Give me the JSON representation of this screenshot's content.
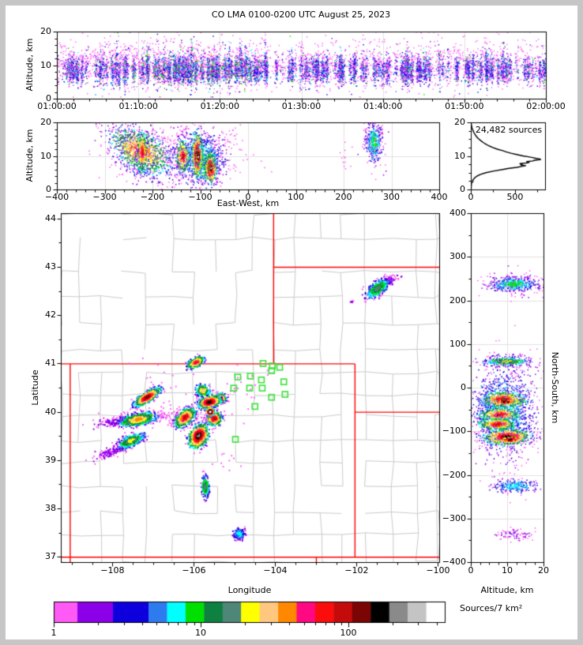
{
  "title": "CO LMA 0100-0200 UTC August 25, 2023",
  "histogram_annotation": "24,482 sources",
  "colorbar": {
    "label": "Sources/7 km²",
    "tick_values": [
      1,
      10,
      100
    ],
    "tick_labels": [
      "1",
      "10",
      "100"
    ],
    "minor_ticks": [
      2,
      3,
      4,
      5,
      6,
      7,
      8,
      9,
      20,
      30,
      40,
      50,
      60,
      70,
      80,
      90,
      200,
      300,
      400
    ],
    "scale": "log",
    "range": [
      1,
      460
    ],
    "colors": [
      "#ff5af5",
      "#8b00e8",
      "#0d00dd",
      "#2e7bf0",
      "#00ffff",
      "#00e000",
      "#0e8040",
      "#4e8677",
      "#ffff00",
      "#ffc87e",
      "#ff8800",
      "#ff0882",
      "#fb0d0d",
      "#c40b0b",
      "#7b0404",
      "#000000",
      "#8a8a8a",
      "#c4c4c4",
      "#ffffff"
    ]
  },
  "style_colors": {
    "state_border": "#ff0000",
    "county_line": "#c9c9c9",
    "gridline": "#e0e0e0",
    "station": "#43e243",
    "frame": "#000000"
  },
  "chart_data": {
    "type": "scatter",
    "figure": "VHF lightning source density, five linked panels with log colorbar of sources per 7 km^2",
    "cluster_format": "[center_x, center_y, sigma_x, sigma_y, shear_dy_per_dx, n_points, peak_color_tier(0-18 into colorbar.colors)]",
    "panels": {
      "time_height": {
        "ylabel": "Altitude, km",
        "ylim": [
          0,
          20
        ],
        "yticks": [
          {
            "v": 0,
            "t": "0"
          },
          {
            "v": 10,
            "t": "10"
          },
          {
            "v": 20,
            "t": "20"
          }
        ],
        "xtick_labels": [
          "01:00:00",
          "01:10:00",
          "01:20:00",
          "01:30:00",
          "01:40:00",
          "01:50:00",
          "02:00:00"
        ],
        "scatter_gen": {
          "columns": 252,
          "pts_per_column": [
            8,
            58
          ],
          "halo_points": 2400,
          "band_alt": 8.4,
          "band_sd": 2.0,
          "halo_alt": 10.3,
          "halo_sd": 3.6,
          "hot_start": 0.15,
          "hot_end": 0.4,
          "quiet_start": 0.42,
          "quiet_end": 0.52
        }
      },
      "east_west": {
        "xlabel": "East-West, km",
        "ylabel": "Altitude, km",
        "xlim": [
          -400,
          400
        ],
        "ylim": [
          0,
          20
        ],
        "xticks": [
          {
            "v": -400,
            "t": "−400"
          },
          {
            "v": -300,
            "t": "−300"
          },
          {
            "v": -200,
            "t": "−200"
          },
          {
            "v": -100,
            "t": "−100"
          },
          {
            "v": 0,
            "t": "0"
          },
          {
            "v": 100,
            "t": "100"
          },
          {
            "v": 200,
            "t": "200"
          },
          {
            "v": 300,
            "t": "300"
          },
          {
            "v": 400,
            "t": "400"
          }
        ],
        "yticks": [
          {
            "v": 0,
            "t": "0"
          },
          {
            "v": 10,
            "t": "10"
          },
          {
            "v": 20,
            "t": "20"
          }
        ],
        "clusters": [
          [
            -225,
            11.5,
            30,
            2.9,
            -0.05,
            850,
            12
          ],
          [
            -221,
            11,
            5,
            3.0,
            0,
            260,
            13
          ],
          [
            -228,
            11,
            36,
            4.6,
            -0.07,
            450,
            2
          ],
          [
            -105,
            9.5,
            27,
            3.8,
            0,
            850,
            4
          ],
          [
            -136,
            9.8,
            7,
            2.3,
            0,
            260,
            13
          ],
          [
            -106,
            10,
            6,
            3.3,
            0,
            380,
            16
          ],
          [
            -104,
            10,
            2.5,
            1.3,
            0,
            70,
            18
          ],
          [
            -78,
            6.3,
            6,
            2.1,
            0,
            320,
            16
          ],
          [
            -77,
            6.2,
            2,
            1.1,
            0,
            60,
            18
          ],
          [
            -90,
            8,
            15,
            3,
            0,
            260,
            7
          ],
          [
            263,
            14,
            8,
            3.1,
            0,
            280,
            5
          ],
          [
            263,
            15,
            12,
            4.2,
            0,
            130,
            1
          ],
          [
            -160,
            11,
            70,
            4,
            -0.02,
            320,
            0
          ],
          [
            -40,
            15,
            25,
            2.6,
            0,
            45,
            0
          ],
          [
            205,
            10,
            6,
            2,
            0,
            12,
            0
          ]
        ]
      },
      "altitude_histogram": {
        "annotation": "24,482 sources",
        "xlim": [
          0,
          840
        ],
        "ylim": [
          0,
          20
        ],
        "xticks": [
          {
            "v": 0,
            "t": "0"
          },
          {
            "v": 500,
            "t": "500"
          }
        ],
        "yticks": [
          {
            "v": 0,
            "t": "0"
          },
          {
            "v": 10,
            "t": "10"
          },
          {
            "v": 20,
            "t": "20"
          }
        ],
        "profile": [
          [
            0,
            3
          ],
          [
            1,
            5
          ],
          [
            2,
            8
          ],
          [
            2.3,
            25
          ],
          [
            2.6,
            18
          ],
          [
            3,
            30
          ],
          [
            3.5,
            45
          ],
          [
            4,
            70
          ],
          [
            4.5,
            110
          ],
          [
            5,
            170
          ],
          [
            5.5,
            260
          ],
          [
            6,
            370
          ],
          [
            6.3,
            430
          ],
          [
            6.6,
            520
          ],
          [
            6.9,
            585
          ],
          [
            7.1,
            620
          ],
          [
            7.3,
            565
          ],
          [
            7.5,
            580
          ],
          [
            7.7,
            555
          ],
          [
            7.9,
            640
          ],
          [
            8.1,
            660
          ],
          [
            8.3,
            630
          ],
          [
            8.5,
            700
          ],
          [
            8.7,
            720
          ],
          [
            8.9,
            790
          ],
          [
            9.1,
            780
          ],
          [
            9.3,
            735
          ],
          [
            9.5,
            700
          ],
          [
            9.8,
            640
          ],
          [
            10,
            590
          ],
          [
            10.4,
            520
          ],
          [
            10.8,
            455
          ],
          [
            11.2,
            400
          ],
          [
            11.6,
            355
          ],
          [
            12,
            300
          ],
          [
            12.5,
            250
          ],
          [
            13,
            205
          ],
          [
            13.5,
            170
          ],
          [
            14,
            140
          ],
          [
            14.5,
            115
          ],
          [
            15,
            92
          ],
          [
            15.5,
            72
          ],
          [
            16,
            58
          ],
          [
            16.5,
            45
          ],
          [
            17,
            34
          ],
          [
            17.5,
            26
          ],
          [
            18,
            18
          ],
          [
            18.5,
            12
          ],
          [
            19,
            8
          ],
          [
            19.5,
            5
          ],
          [
            20,
            3
          ]
        ]
      },
      "plan_view": {
        "xlabel": "Longitude",
        "ylabel": "Latitude",
        "lon_range": [
          -109.27,
          -99.97
        ],
        "lat_range": [
          36.89,
          44.11
        ],
        "xticks": [
          {
            "v": -108,
            "t": "−108"
          },
          {
            "v": -106,
            "t": "−106"
          },
          {
            "v": -104,
            "t": "−104"
          },
          {
            "v": -102,
            "t": "−102"
          },
          {
            "v": -100,
            "t": "−100"
          }
        ],
        "yticks": [
          {
            "v": 37,
            "t": "37"
          },
          {
            "v": 38,
            "t": "38"
          },
          {
            "v": 39,
            "t": "39"
          },
          {
            "v": 40,
            "t": "40"
          },
          {
            "v": 41,
            "t": "41"
          },
          {
            "v": 42,
            "t": "42"
          },
          {
            "v": 43,
            "t": "43"
          },
          {
            "v": 44,
            "t": "44"
          }
        ],
        "state_lines": [
          [
            -109.27,
            41,
            -102.05,
            41
          ],
          [
            -109.27,
            37,
            -99.97,
            37
          ],
          [
            -109.05,
            36.89,
            -109.05,
            41
          ],
          [
            -102.05,
            37,
            -102.05,
            41
          ],
          [
            -104.05,
            41,
            -104.05,
            44.11
          ],
          [
            -104.05,
            43,
            -99.97,
            43
          ],
          [
            -102.05,
            40,
            -99.97,
            40
          ],
          [
            -103.0,
            36.89,
            -103.0,
            37
          ]
        ],
        "stations": [
          [
            -104.3,
            41.0
          ],
          [
            -104.07,
            40.95
          ],
          [
            -103.89,
            40.92
          ],
          [
            -104.09,
            40.85
          ],
          [
            -104.61,
            40.74
          ],
          [
            -104.92,
            40.72
          ],
          [
            -104.34,
            40.66
          ],
          [
            -103.79,
            40.62
          ],
          [
            -105.02,
            40.49
          ],
          [
            -104.63,
            40.49
          ],
          [
            -104.32,
            40.49
          ],
          [
            -103.76,
            40.36
          ],
          [
            -104.09,
            40.3
          ],
          [
            -104.5,
            40.11
          ],
          [
            -104.98,
            39.43
          ]
        ],
        "clusters": [
          [
            -105.95,
            41.02,
            0.1,
            0.05,
            0.3,
            320,
            12
          ],
          [
            -107.15,
            40.3,
            0.15,
            0.055,
            0.45,
            650,
            14
          ],
          [
            -107.38,
            39.84,
            0.22,
            0.06,
            0.15,
            700,
            10
          ],
          [
            -107.85,
            39.8,
            0.28,
            0.045,
            0.1,
            160,
            1
          ],
          [
            -107.55,
            39.4,
            0.16,
            0.06,
            0.3,
            420,
            8
          ],
          [
            -108.05,
            39.16,
            0.2,
            0.05,
            0.3,
            130,
            1
          ],
          [
            -106.22,
            39.88,
            0.12,
            0.08,
            0.4,
            550,
            13
          ],
          [
            -105.78,
            40.44,
            0.09,
            0.06,
            0,
            230,
            9
          ],
          [
            -105.62,
            40.2,
            0.13,
            0.06,
            0.15,
            600,
            15
          ],
          [
            -105.5,
            39.86,
            0.09,
            0.07,
            0,
            380,
            13
          ],
          [
            -105.88,
            39.5,
            0.11,
            0.11,
            0.3,
            800,
            16
          ],
          [
            -105.6,
            40.0,
            0.05,
            0.04,
            0,
            160,
            18
          ],
          [
            -105.33,
            40.28,
            0.06,
            0.05,
            0,
            200,
            12
          ],
          [
            -101.48,
            42.55,
            0.13,
            0.08,
            0.45,
            380,
            7
          ],
          [
            -101.25,
            42.68,
            0.13,
            0.05,
            0.3,
            110,
            1
          ],
          [
            -105.72,
            38.45,
            0.045,
            0.11,
            0,
            210,
            7
          ],
          [
            -104.88,
            37.47,
            0.07,
            0.06,
            0,
            150,
            4
          ],
          [
            -106.5,
            39.95,
            0.5,
            0.1,
            0,
            110,
            0
          ],
          [
            -104.7,
            40.45,
            0.45,
            0.3,
            0,
            25,
            0
          ],
          [
            -106.8,
            40.7,
            0.3,
            0.3,
            0,
            15,
            0
          ],
          [
            -102.1,
            42.28,
            0.05,
            0.02,
            0,
            10,
            1
          ],
          [
            -105.2,
            38.9,
            0.2,
            0.15,
            0,
            10,
            0
          ]
        ]
      },
      "north_south": {
        "xlabel": "Altitude, km",
        "ylabel": "North-South, km",
        "xlim": [
          0,
          20
        ],
        "ylim": [
          -400,
          400
        ],
        "xticks": [
          {
            "v": 0,
            "t": "0"
          },
          {
            "v": 10,
            "t": "10"
          },
          {
            "v": 20,
            "t": "20"
          }
        ],
        "yticks": [
          {
            "v": 400,
            "t": "400"
          },
          {
            "v": 300,
            "t": "300"
          },
          {
            "v": 200,
            "t": "200"
          },
          {
            "v": 100,
            "t": "100"
          },
          {
            "v": 0,
            "t": "0"
          },
          {
            "v": -100,
            "t": "−100"
          },
          {
            "v": -200,
            "t": "−200"
          },
          {
            "v": -300,
            "t": "−300"
          },
          {
            "v": -400,
            "t": "−400"
          }
        ],
        "clusters": [
          [
            9,
            -55,
            4.3,
            48,
            0,
            1300,
            4
          ],
          [
            9,
            -28,
            2.9,
            9,
            0,
            520,
            14
          ],
          [
            9.6,
            -33,
            1.3,
            3,
            0,
            60,
            17
          ],
          [
            8,
            -62,
            2.7,
            8,
            0,
            420,
            13
          ],
          [
            7.5,
            -84,
            2.5,
            7,
            0,
            380,
            13
          ],
          [
            10,
            -113,
            3.1,
            9,
            0,
            620,
            15
          ],
          [
            11,
            -120,
            1.6,
            4,
            0,
            70,
            16
          ],
          [
            10,
            60,
            2.9,
            5,
            0,
            260,
            8
          ],
          [
            10,
            60,
            4.2,
            9,
            0,
            130,
            2
          ],
          [
            12,
            237,
            3.3,
            8,
            0,
            380,
            5
          ],
          [
            12,
            237,
            4.6,
            13,
            0,
            160,
            1
          ],
          [
            12,
            -225,
            3.1,
            8,
            0,
            250,
            4
          ],
          [
            12,
            -335,
            2.6,
            8,
            0,
            85,
            1
          ],
          [
            10,
            -60,
            5,
            75,
            0,
            140,
            0
          ]
        ]
      }
    }
  }
}
